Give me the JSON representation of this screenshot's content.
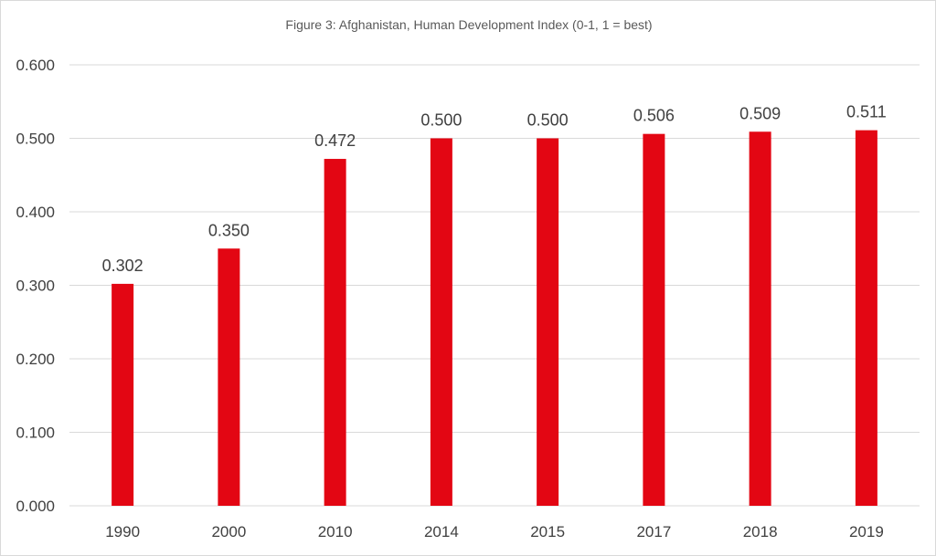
{
  "chart_data": {
    "type": "bar",
    "title": "Figure 3: Afghanistan, Human Development Index (0-1, 1 = best)",
    "xlabel": "",
    "ylabel": "",
    "categories": [
      "1990",
      "2000",
      "2010",
      "2014",
      "2015",
      "2017",
      "2018",
      "2019"
    ],
    "values": [
      0.302,
      0.35,
      0.472,
      0.5,
      0.5,
      0.506,
      0.509,
      0.511
    ],
    "value_labels": [
      "0.302",
      "0.350",
      "0.472",
      "0.500",
      "0.500",
      "0.506",
      "0.509",
      "0.511"
    ],
    "ylim": [
      0,
      0.6
    ],
    "yticks": [
      "0.000",
      "0.100",
      "0.200",
      "0.300",
      "0.400",
      "0.500",
      "0.600"
    ],
    "grid": true,
    "legend": "none",
    "bar_color": "#e30613",
    "grid_color": "#d9d9d9"
  }
}
